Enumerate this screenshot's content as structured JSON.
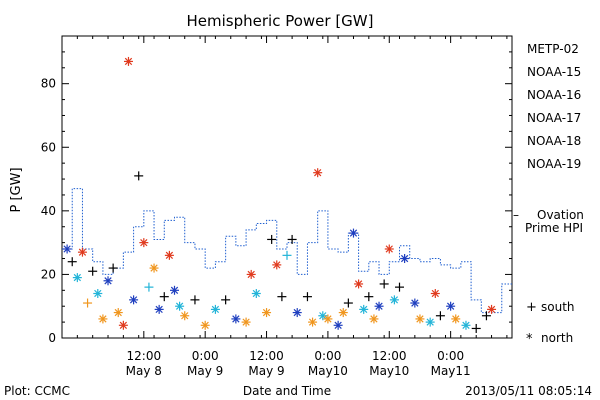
{
  "chart_data": {
    "type": "scatter",
    "title": "Hemispheric Power [GW]",
    "ylabel": "P [GW]",
    "xlabel": "Date and Time",
    "ylim": [
      0,
      95
    ],
    "xlim": [
      "2013-05-07T20:00",
      "2013-05-11T12:00"
    ],
    "yticks": [
      0,
      20,
      40,
      60,
      80
    ],
    "xticks": [
      {
        "t": "2013-05-08T12:00",
        "l1": "12:00",
        "l2": "May 8"
      },
      {
        "t": "2013-05-09T00:00",
        "l1": "0:00",
        "l2": "May 9"
      },
      {
        "t": "2013-05-09T12:00",
        "l1": "12:00",
        "l2": "May 9"
      },
      {
        "t": "2013-05-10T00:00",
        "l1": "0:00",
        "l2": "May10"
      },
      {
        "t": "2013-05-10T12:00",
        "l1": "12:00",
        "l2": "May10"
      },
      {
        "t": "2013-05-11T00:00",
        "l1": "0:00",
        "l2": "May11"
      }
    ],
    "legend": {
      "satellites": [
        {
          "name": "METP-02",
          "color": "#000000"
        },
        {
          "name": "NOAA-15",
          "color": "#1f3fbf"
        },
        {
          "name": "NOAA-16",
          "color": "#22b4d8"
        },
        {
          "name": "NOAA-17",
          "color": "#22d08a"
        },
        {
          "name": "NOAA-18",
          "color": "#f0961e"
        },
        {
          "name": "NOAA-19",
          "color": "#e03a1e"
        }
      ],
      "ovation": {
        "dash": "–",
        "line1": "Ovation",
        "line2": "Prime HPI",
        "color": "#1f5fd0"
      },
      "south": {
        "symbol": "+",
        "label": "south"
      },
      "north": {
        "symbol": "*",
        "label": "north"
      }
    },
    "ovation_series": [
      {
        "t": "2013-05-07T20:00",
        "v": 28
      },
      {
        "t": "2013-05-07T22:00",
        "v": 47
      },
      {
        "t": "2013-05-08T00:00",
        "v": 28
      },
      {
        "t": "2013-05-08T02:00",
        "v": 24
      },
      {
        "t": "2013-05-08T04:00",
        "v": 20
      },
      {
        "t": "2013-05-08T06:00",
        "v": 22
      },
      {
        "t": "2013-05-08T08:00",
        "v": 27
      },
      {
        "t": "2013-05-08T10:00",
        "v": 35
      },
      {
        "t": "2013-05-08T12:00",
        "v": 40
      },
      {
        "t": "2013-05-08T14:00",
        "v": 31
      },
      {
        "t": "2013-05-08T16:00",
        "v": 37
      },
      {
        "t": "2013-05-08T18:00",
        "v": 38
      },
      {
        "t": "2013-05-08T20:00",
        "v": 30
      },
      {
        "t": "2013-05-08T22:00",
        "v": 28
      },
      {
        "t": "2013-05-09T00:00",
        "v": 22
      },
      {
        "t": "2013-05-09T02:00",
        "v": 24
      },
      {
        "t": "2013-05-09T04:00",
        "v": 32
      },
      {
        "t": "2013-05-09T06:00",
        "v": 29
      },
      {
        "t": "2013-05-09T08:00",
        "v": 34
      },
      {
        "t": "2013-05-09T10:00",
        "v": 36
      },
      {
        "t": "2013-05-09T12:00",
        "v": 37
      },
      {
        "t": "2013-05-09T14:00",
        "v": 28
      },
      {
        "t": "2013-05-09T16:00",
        "v": 30
      },
      {
        "t": "2013-05-09T18:00",
        "v": 20
      },
      {
        "t": "2013-05-09T20:00",
        "v": 30
      },
      {
        "t": "2013-05-09T22:00",
        "v": 40
      },
      {
        "t": "2013-05-10T00:00",
        "v": 28
      },
      {
        "t": "2013-05-10T02:00",
        "v": 27
      },
      {
        "t": "2013-05-10T04:00",
        "v": 33
      },
      {
        "t": "2013-05-10T06:00",
        "v": 21
      },
      {
        "t": "2013-05-10T08:00",
        "v": 24
      },
      {
        "t": "2013-05-10T10:00",
        "v": 20
      },
      {
        "t": "2013-05-10T12:00",
        "v": 24
      },
      {
        "t": "2013-05-10T14:00",
        "v": 29
      },
      {
        "t": "2013-05-10T16:00",
        "v": 25
      },
      {
        "t": "2013-05-10T18:00",
        "v": 24
      },
      {
        "t": "2013-05-10T20:00",
        "v": 25
      },
      {
        "t": "2013-05-10T22:00",
        "v": 23
      },
      {
        "t": "2013-05-11T00:00",
        "v": 22
      },
      {
        "t": "2013-05-11T02:00",
        "v": 24
      },
      {
        "t": "2013-05-11T04:00",
        "v": 12
      },
      {
        "t": "2013-05-11T06:00",
        "v": 8
      },
      {
        "t": "2013-05-11T08:00",
        "v": 8
      },
      {
        "t": "2013-05-11T10:00",
        "v": 17
      }
    ],
    "points": [
      {
        "t": "2013-05-07T21:00",
        "v": 28,
        "sat": "NOAA-15",
        "hemi": "north"
      },
      {
        "t": "2013-05-07T22:00",
        "v": 24,
        "sat": "METP-02",
        "hemi": "south"
      },
      {
        "t": "2013-05-07T23:00",
        "v": 19,
        "sat": "NOAA-16",
        "hemi": "north"
      },
      {
        "t": "2013-05-08T00:00",
        "v": 27,
        "sat": "NOAA-19",
        "hemi": "north"
      },
      {
        "t": "2013-05-08T01:00",
        "v": 11,
        "sat": "NOAA-18",
        "hemi": "south"
      },
      {
        "t": "2013-05-08T02:00",
        "v": 21,
        "sat": "METP-02",
        "hemi": "south"
      },
      {
        "t": "2013-05-08T03:00",
        "v": 14,
        "sat": "NOAA-16",
        "hemi": "north"
      },
      {
        "t": "2013-05-08T04:00",
        "v": 6,
        "sat": "NOAA-18",
        "hemi": "north"
      },
      {
        "t": "2013-05-08T05:00",
        "v": 18,
        "sat": "NOAA-15",
        "hemi": "north"
      },
      {
        "t": "2013-05-08T06:00",
        "v": 22,
        "sat": "METP-02",
        "hemi": "south"
      },
      {
        "t": "2013-05-08T07:00",
        "v": 8,
        "sat": "NOAA-18",
        "hemi": "north"
      },
      {
        "t": "2013-05-08T08:00",
        "v": 4,
        "sat": "NOAA-19",
        "hemi": "north"
      },
      {
        "t": "2013-05-08T09:00",
        "v": 87,
        "sat": "NOAA-19",
        "hemi": "north"
      },
      {
        "t": "2013-05-08T10:00",
        "v": 12,
        "sat": "NOAA-15",
        "hemi": "north"
      },
      {
        "t": "2013-05-08T11:00",
        "v": 51,
        "sat": "METP-02",
        "hemi": "south"
      },
      {
        "t": "2013-05-08T12:00",
        "v": 30,
        "sat": "NOAA-19",
        "hemi": "north"
      },
      {
        "t": "2013-05-08T13:00",
        "v": 16,
        "sat": "NOAA-16",
        "hemi": "south"
      },
      {
        "t": "2013-05-08T14:00",
        "v": 22,
        "sat": "NOAA-18",
        "hemi": "north"
      },
      {
        "t": "2013-05-08T15:00",
        "v": 9,
        "sat": "NOAA-15",
        "hemi": "north"
      },
      {
        "t": "2013-05-08T16:00",
        "v": 13,
        "sat": "METP-02",
        "hemi": "south"
      },
      {
        "t": "2013-05-08T17:00",
        "v": 26,
        "sat": "NOAA-19",
        "hemi": "north"
      },
      {
        "t": "2013-05-08T18:00",
        "v": 15,
        "sat": "NOAA-15",
        "hemi": "north"
      },
      {
        "t": "2013-05-08T19:00",
        "v": 10,
        "sat": "NOAA-16",
        "hemi": "north"
      },
      {
        "t": "2013-05-08T20:00",
        "v": 7,
        "sat": "NOAA-18",
        "hemi": "north"
      },
      {
        "t": "2013-05-08T22:00",
        "v": 12,
        "sat": "METP-02",
        "hemi": "south"
      },
      {
        "t": "2013-05-09T00:00",
        "v": 4,
        "sat": "NOAA-18",
        "hemi": "north"
      },
      {
        "t": "2013-05-09T02:00",
        "v": 9,
        "sat": "NOAA-16",
        "hemi": "north"
      },
      {
        "t": "2013-05-09T04:00",
        "v": 12,
        "sat": "METP-02",
        "hemi": "south"
      },
      {
        "t": "2013-05-09T06:00",
        "v": 6,
        "sat": "NOAA-15",
        "hemi": "north"
      },
      {
        "t": "2013-05-09T08:00",
        "v": 5,
        "sat": "NOAA-18",
        "hemi": "north"
      },
      {
        "t": "2013-05-09T09:00",
        "v": 20,
        "sat": "NOAA-19",
        "hemi": "north"
      },
      {
        "t": "2013-05-09T10:00",
        "v": 14,
        "sat": "NOAA-16",
        "hemi": "north"
      },
      {
        "t": "2013-05-09T12:00",
        "v": 8,
        "sat": "NOAA-18",
        "hemi": "north"
      },
      {
        "t": "2013-05-09T13:00",
        "v": 31,
        "sat": "METP-02",
        "hemi": "south"
      },
      {
        "t": "2013-05-09T14:00",
        "v": 23,
        "sat": "NOAA-19",
        "hemi": "north"
      },
      {
        "t": "2013-05-09T15:00",
        "v": 13,
        "sat": "METP-02",
        "hemi": "south"
      },
      {
        "t": "2013-05-09T16:00",
        "v": 26,
        "sat": "NOAA-16",
        "hemi": "south"
      },
      {
        "t": "2013-05-09T17:00",
        "v": 31,
        "sat": "METP-02",
        "hemi": "south"
      },
      {
        "t": "2013-05-09T18:00",
        "v": 8,
        "sat": "NOAA-15",
        "hemi": "north"
      },
      {
        "t": "2013-05-09T20:00",
        "v": 13,
        "sat": "METP-02",
        "hemi": "south"
      },
      {
        "t": "2013-05-09T21:00",
        "v": 5,
        "sat": "NOAA-18",
        "hemi": "north"
      },
      {
        "t": "2013-05-09T22:00",
        "v": 52,
        "sat": "NOAA-19",
        "hemi": "north"
      },
      {
        "t": "2013-05-09T23:00",
        "v": 7,
        "sat": "NOAA-16",
        "hemi": "north"
      },
      {
        "t": "2013-05-10T00:00",
        "v": 6,
        "sat": "NOAA-18",
        "hemi": "north"
      },
      {
        "t": "2013-05-10T02:00",
        "v": 4,
        "sat": "NOAA-15",
        "hemi": "north"
      },
      {
        "t": "2013-05-10T03:00",
        "v": 8,
        "sat": "NOAA-18",
        "hemi": "north"
      },
      {
        "t": "2013-05-10T04:00",
        "v": 11,
        "sat": "METP-02",
        "hemi": "south"
      },
      {
        "t": "2013-05-10T05:00",
        "v": 33,
        "sat": "NOAA-15",
        "hemi": "north"
      },
      {
        "t": "2013-05-10T06:00",
        "v": 17,
        "sat": "NOAA-19",
        "hemi": "north"
      },
      {
        "t": "2013-05-10T07:00",
        "v": 9,
        "sat": "NOAA-16",
        "hemi": "north"
      },
      {
        "t": "2013-05-10T08:00",
        "v": 13,
        "sat": "METP-02",
        "hemi": "south"
      },
      {
        "t": "2013-05-10T09:00",
        "v": 6,
        "sat": "NOAA-18",
        "hemi": "north"
      },
      {
        "t": "2013-05-10T10:00",
        "v": 10,
        "sat": "NOAA-15",
        "hemi": "north"
      },
      {
        "t": "2013-05-10T11:00",
        "v": 17,
        "sat": "METP-02",
        "hemi": "south"
      },
      {
        "t": "2013-05-10T12:00",
        "v": 28,
        "sat": "NOAA-19",
        "hemi": "north"
      },
      {
        "t": "2013-05-10T13:00",
        "v": 12,
        "sat": "NOAA-16",
        "hemi": "north"
      },
      {
        "t": "2013-05-10T14:00",
        "v": 16,
        "sat": "METP-02",
        "hemi": "south"
      },
      {
        "t": "2013-05-10T15:00",
        "v": 25,
        "sat": "NOAA-15",
        "hemi": "north"
      },
      {
        "t": "2013-05-10T17:00",
        "v": 11,
        "sat": "NOAA-15",
        "hemi": "north"
      },
      {
        "t": "2013-05-10T18:00",
        "v": 6,
        "sat": "NOAA-18",
        "hemi": "north"
      },
      {
        "t": "2013-05-10T20:00",
        "v": 5,
        "sat": "NOAA-16",
        "hemi": "north"
      },
      {
        "t": "2013-05-10T21:00",
        "v": 14,
        "sat": "NOAA-19",
        "hemi": "north"
      },
      {
        "t": "2013-05-10T22:00",
        "v": 7,
        "sat": "METP-02",
        "hemi": "south"
      },
      {
        "t": "2013-05-11T00:00",
        "v": 10,
        "sat": "NOAA-15",
        "hemi": "north"
      },
      {
        "t": "2013-05-11T01:00",
        "v": 6,
        "sat": "NOAA-18",
        "hemi": "north"
      },
      {
        "t": "2013-05-11T03:00",
        "v": 4,
        "sat": "NOAA-16",
        "hemi": "north"
      },
      {
        "t": "2013-05-11T05:00",
        "v": 3,
        "sat": "METP-02",
        "hemi": "south"
      },
      {
        "t": "2013-05-11T07:00",
        "v": 7,
        "sat": "METP-02",
        "hemi": "south"
      },
      {
        "t": "2013-05-11T08:00",
        "v": 9,
        "sat": "NOAA-19",
        "hemi": "north"
      }
    ]
  },
  "footer": {
    "plot_credit": "Plot: CCMC",
    "timestamp": "2013/05/11 08:05:14"
  }
}
